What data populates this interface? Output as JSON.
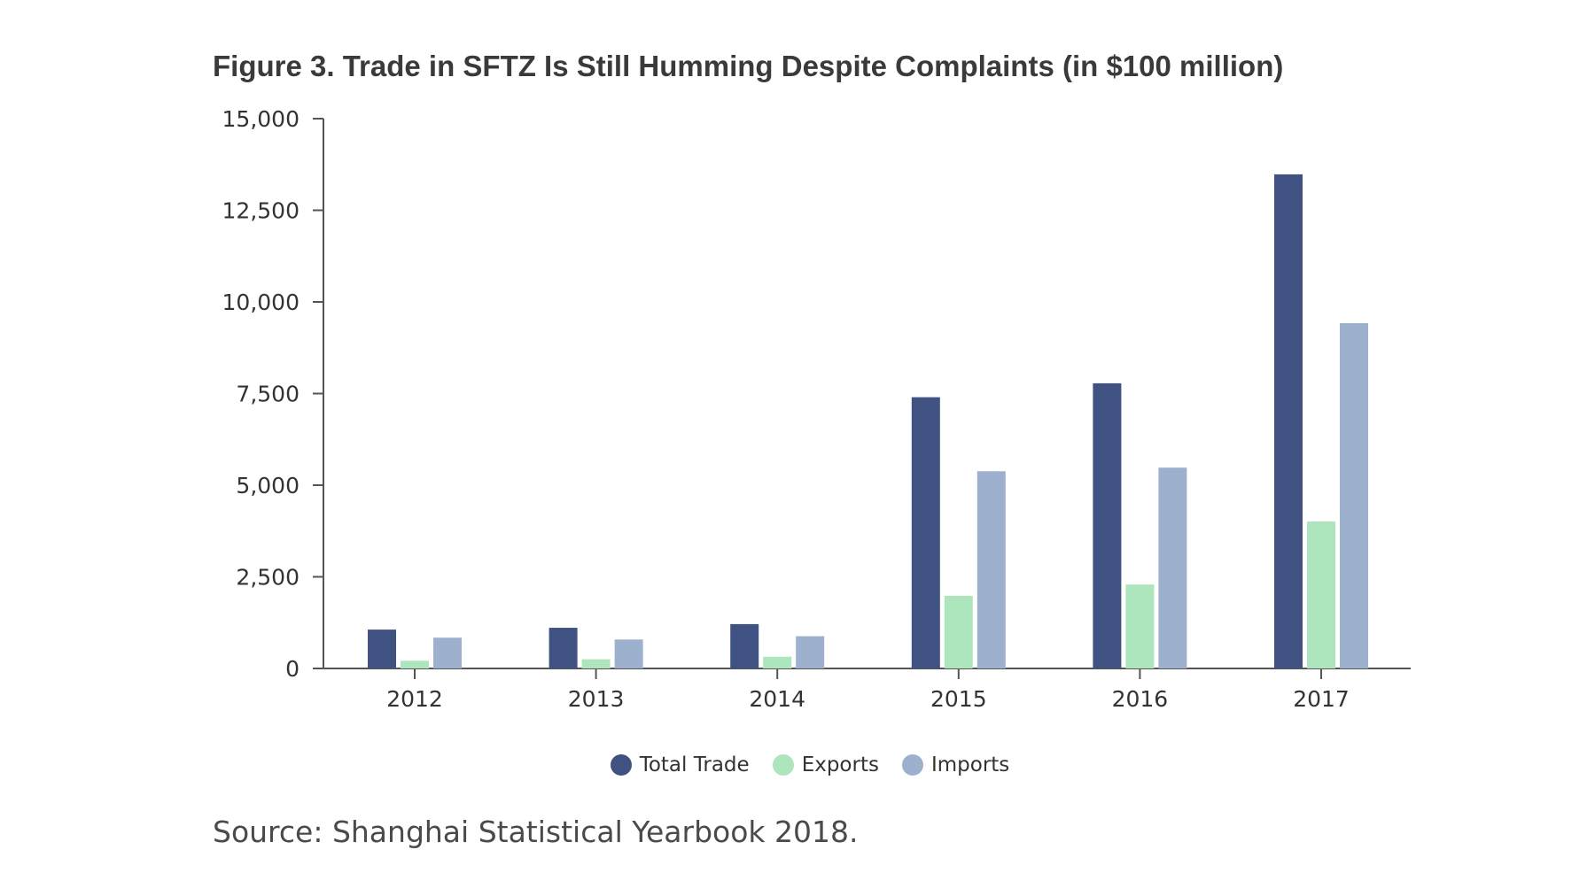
{
  "chart_data": {
    "type": "bar",
    "title": "Figure 3. Trade in SFTZ Is Still Humming Despite Complaints (in $100 million)",
    "xlabel": "",
    "ylabel": "",
    "categories": [
      "2012",
      "2013",
      "2014",
      "2015",
      "2016",
      "2017"
    ],
    "series": [
      {
        "name": "Total Trade",
        "color": "#3f5282",
        "values": [
          1060,
          1110,
          1210,
          7400,
          7780,
          13480
        ]
      },
      {
        "name": "Exports",
        "color": "#ade6bd",
        "values": [
          210,
          250,
          320,
          1980,
          2290,
          4010
        ]
      },
      {
        "name": "Imports",
        "color": "#9db1ce",
        "values": [
          840,
          790,
          880,
          5380,
          5480,
          9420
        ]
      }
    ],
    "ylim": [
      0,
      15000
    ],
    "yticks": [
      0,
      2500,
      5000,
      7500,
      10000,
      12500,
      15000
    ],
    "ytick_labels": [
      "0",
      "2,500",
      "5,000",
      "7,500",
      "10,000",
      "12,500",
      "15,000"
    ],
    "grid": false,
    "legend_position": "bottom-center"
  },
  "source": "Source: Shanghai Statistical Yearbook 2018."
}
